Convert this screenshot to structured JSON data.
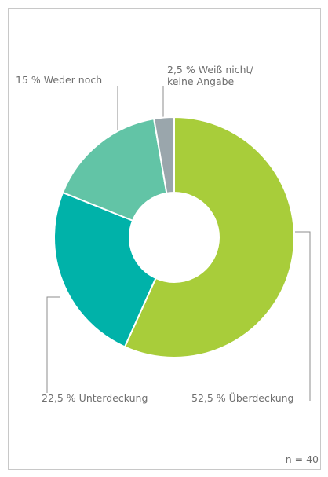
{
  "chart_data": {
    "type": "donut",
    "categories": [
      "Überdeckung",
      "Unterdeckung",
      "Weder noch",
      "Weiß  nicht/ keine Angabe"
    ],
    "values": [
      52.5,
      22.5,
      15,
      2.5
    ],
    "value_labels": [
      "52,5 %",
      "22,5 %",
      "15 %",
      "2,5 %"
    ],
    "colors": [
      "#a8cd3a",
      "#00b2a9",
      "#62c4a6",
      "#9aa6ac"
    ],
    "note": "n = 40"
  }
}
